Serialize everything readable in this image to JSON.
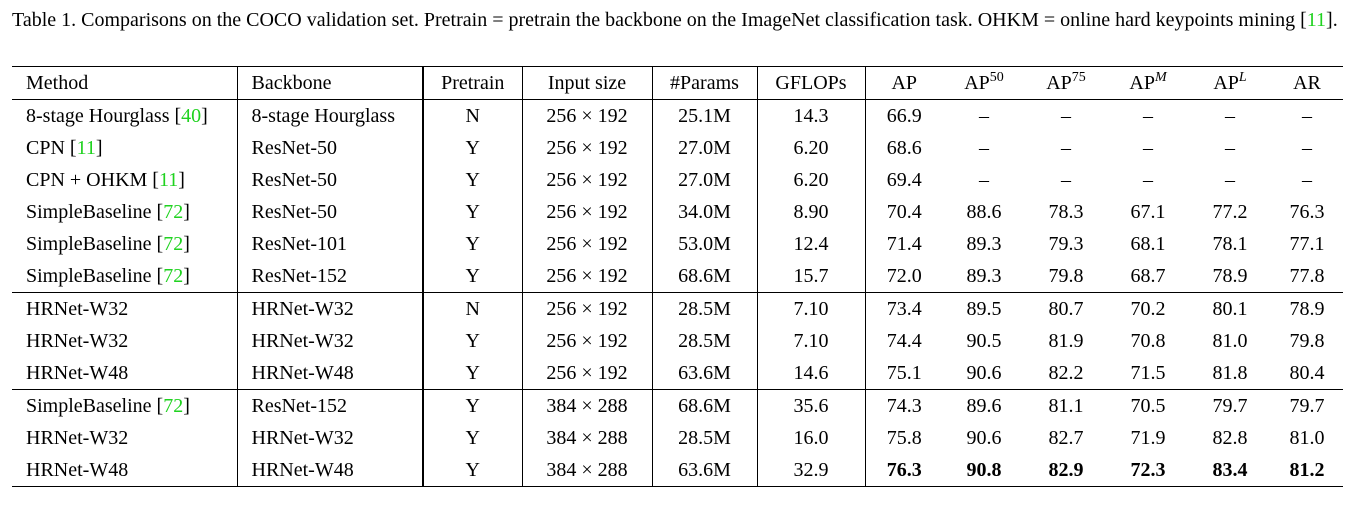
{
  "caption": [
    "Table 1. Comparisons on the COCO validation set. Pretrain = pretrain the backbone on the ImageNet classification task. OHKM = online hard keypoints mining [",
    "11",
    "]."
  ],
  "table": {
    "header": [
      [
        "Method"
      ],
      [
        "Backbone"
      ],
      [
        "Pretrain"
      ],
      [
        "Input size"
      ],
      [
        "#Params"
      ],
      [
        "GFLOPs"
      ],
      [
        "AP"
      ],
      [
        "AP",
        "50"
      ],
      [
        "AP",
        "75"
      ],
      [
        "AP",
        "M"
      ],
      [
        "AP",
        "L"
      ],
      [
        "AR"
      ]
    ],
    "groups": [
      [
        [
          [
            "8-stage Hourglass [",
            "40",
            "]"
          ],
          [
            "8-stage Hourglass"
          ],
          [
            "N"
          ],
          [
            "256 × 192"
          ],
          [
            "25.1M"
          ],
          [
            "14.3"
          ],
          [
            "66.9"
          ],
          [
            "–"
          ],
          [
            "–"
          ],
          [
            "–"
          ],
          [
            "–"
          ],
          [
            "–"
          ]
        ],
        [
          [
            "CPN [",
            "11",
            "]"
          ],
          [
            "ResNet-50"
          ],
          [
            "Y"
          ],
          [
            "256 × 192"
          ],
          [
            "27.0M"
          ],
          [
            "6.20"
          ],
          [
            "68.6"
          ],
          [
            "–"
          ],
          [
            "–"
          ],
          [
            "–"
          ],
          [
            "–"
          ],
          [
            "–"
          ]
        ],
        [
          [
            "CPN + OHKM [",
            "11",
            "]"
          ],
          [
            "ResNet-50"
          ],
          [
            "Y"
          ],
          [
            "256 × 192"
          ],
          [
            "27.0M"
          ],
          [
            "6.20"
          ],
          [
            "69.4"
          ],
          [
            "–"
          ],
          [
            "–"
          ],
          [
            "–"
          ],
          [
            "–"
          ],
          [
            "–"
          ]
        ],
        [
          [
            "SimpleBaseline [",
            "72",
            "]"
          ],
          [
            "ResNet-50"
          ],
          [
            "Y"
          ],
          [
            "256 × 192"
          ],
          [
            "34.0M"
          ],
          [
            "8.90"
          ],
          [
            "70.4"
          ],
          [
            "88.6"
          ],
          [
            "78.3"
          ],
          [
            "67.1"
          ],
          [
            "77.2"
          ],
          [
            "76.3"
          ]
        ],
        [
          [
            "SimpleBaseline [",
            "72",
            "]"
          ],
          [
            "ResNet-101"
          ],
          [
            "Y"
          ],
          [
            "256 × 192"
          ],
          [
            "53.0M"
          ],
          [
            "12.4"
          ],
          [
            "71.4"
          ],
          [
            "89.3"
          ],
          [
            "79.3"
          ],
          [
            "68.1"
          ],
          [
            "78.1"
          ],
          [
            "77.1"
          ]
        ],
        [
          [
            "SimpleBaseline [",
            "72",
            "]"
          ],
          [
            "ResNet-152"
          ],
          [
            "Y"
          ],
          [
            "256 × 192"
          ],
          [
            "68.6M"
          ],
          [
            "15.7"
          ],
          [
            "72.0"
          ],
          [
            "89.3"
          ],
          [
            "79.8"
          ],
          [
            "68.7"
          ],
          [
            "78.9"
          ],
          [
            "77.8"
          ]
        ]
      ],
      [
        [
          [
            "HRNet-W32"
          ],
          [
            "HRNet-W32"
          ],
          [
            "N"
          ],
          [
            "256 × 192"
          ],
          [
            "28.5M"
          ],
          [
            "7.10"
          ],
          [
            "73.4"
          ],
          [
            "89.5"
          ],
          [
            "80.7"
          ],
          [
            "70.2"
          ],
          [
            "80.1"
          ],
          [
            "78.9"
          ]
        ],
        [
          [
            "HRNet-W32"
          ],
          [
            "HRNet-W32"
          ],
          [
            "Y"
          ],
          [
            "256 × 192"
          ],
          [
            "28.5M"
          ],
          [
            "7.10"
          ],
          [
            "74.4"
          ],
          [
            "90.5"
          ],
          [
            "81.9"
          ],
          [
            "70.8"
          ],
          [
            "81.0"
          ],
          [
            "79.8"
          ]
        ],
        [
          [
            "HRNet-W48"
          ],
          [
            "HRNet-W48"
          ],
          [
            "Y"
          ],
          [
            "256 × 192"
          ],
          [
            "63.6M"
          ],
          [
            "14.6"
          ],
          [
            "75.1"
          ],
          [
            "90.6"
          ],
          [
            "82.2"
          ],
          [
            "71.5"
          ],
          [
            "81.8"
          ],
          [
            "80.4"
          ]
        ]
      ],
      [
        [
          [
            "SimpleBaseline [",
            "72",
            "]"
          ],
          [
            "ResNet-152"
          ],
          [
            "Y"
          ],
          [
            "384 × 288"
          ],
          [
            "68.6M"
          ],
          [
            "35.6"
          ],
          [
            "74.3"
          ],
          [
            "89.6"
          ],
          [
            "81.1"
          ],
          [
            "70.5"
          ],
          [
            "79.7"
          ],
          [
            "79.7"
          ]
        ],
        [
          [
            "HRNet-W32"
          ],
          [
            "HRNet-W32"
          ],
          [
            "Y"
          ],
          [
            "384 × 288"
          ],
          [
            "28.5M"
          ],
          [
            "16.0"
          ],
          [
            "75.8"
          ],
          [
            "90.6"
          ],
          [
            "82.7"
          ],
          [
            "71.9"
          ],
          [
            "82.8"
          ],
          [
            "81.0"
          ]
        ],
        [
          [
            "HRNet-W48"
          ],
          [
            "HRNet-W48"
          ],
          [
            "Y"
          ],
          [
            "384 × 288"
          ],
          [
            "63.6M"
          ],
          [
            "32.9"
          ],
          [
            "76.3"
          ],
          [
            "90.8"
          ],
          [
            "82.9"
          ],
          [
            "72.3"
          ],
          [
            "83.4"
          ],
          [
            "81.2"
          ]
        ]
      ]
    ],
    "bold": {
      "group": 2,
      "row": 2,
      "columns": [
        6,
        7,
        8,
        9,
        10,
        11
      ]
    }
  }
}
